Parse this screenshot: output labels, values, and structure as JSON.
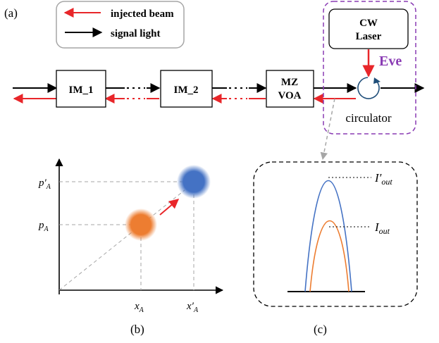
{
  "panel_a": {
    "label": "(a)",
    "legend": {
      "injected_beam_label": "injected beam",
      "signal_light_label": "signal light"
    },
    "modules": {
      "im1": "IM_1",
      "im2": "IM_2",
      "mz_line1": "MZ",
      "mz_line2": "VOA"
    },
    "eve": {
      "laser_line1": "CW",
      "laser_line2": "Laser",
      "name": "Eve",
      "circulator_label": "circulator"
    },
    "colors": {
      "injected_beam": "#e8262a",
      "signal_light": "#000000",
      "eve_box": "#8a3cb4",
      "circulator": "#1f4e79"
    }
  },
  "panel_b": {
    "label": "(b)",
    "axis_labels": {
      "p_A": "p",
      "p_A_sub": "A",
      "p_A_prime": "p′",
      "p_A_prime_sub": "A",
      "x_A": "x",
      "x_A_sub": "A",
      "x_A_prime": "x′",
      "x_A_prime_sub": "A"
    },
    "colors": {
      "initial_state": "#ed7d31",
      "shifted_state": "#4472c4",
      "arrow": "#e8262a"
    }
  },
  "panel_c": {
    "label": "(c)",
    "labels": {
      "i_out_prime": "I′",
      "i_out_prime_sub": "out",
      "i_out": "I",
      "i_out_sub": "out"
    },
    "colors": {
      "outer_curve": "#4472c4",
      "inner_curve": "#ed7d31"
    }
  }
}
